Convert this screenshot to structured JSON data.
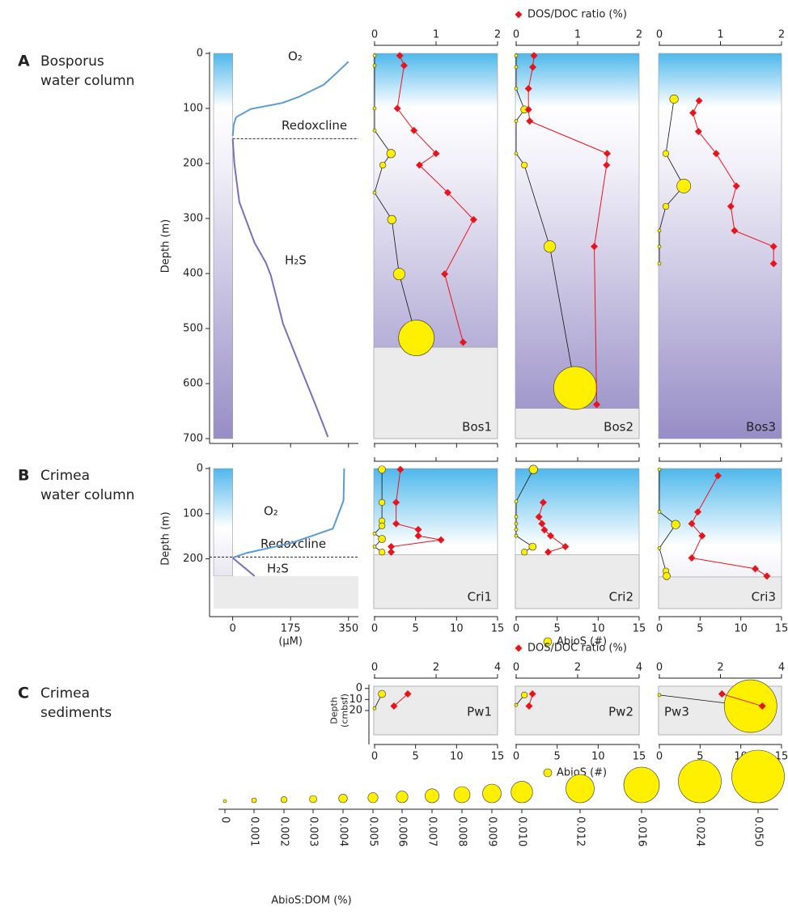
{
  "chart_data": [
    {
      "type": "depth_profiles",
      "label": "A",
      "title": [
        "Bosporus",
        "water column"
      ],
      "ylabel": "Depth (m)",
      "ylim": [
        0,
        700
      ],
      "yticks": [
        0,
        100,
        200,
        300,
        400,
        500,
        600,
        700
      ],
      "profile": {
        "xlim": [
          -70,
          380
        ],
        "xticks": [
          0,
          175,
          350
        ],
        "labels": false,
        "series": [
          {
            "name": "O₂",
            "color": "#5b9bd5",
            "depth": [
              15,
              35,
              57,
              79,
              90,
              101,
              116,
              130,
              150
            ],
            "values": [
              350,
              315,
              275,
              200,
              150,
              55,
              10,
              3,
              0
            ]
          },
          {
            "name": "H₂S",
            "color": "#7a6fb8",
            "depth": [
              155,
              200,
              270,
              344,
              380,
              403,
              450,
              491,
              565,
              638,
              697
            ],
            "values": [
              0,
              5,
              20,
              66,
              100,
              115,
              135,
              152,
              201,
              250,
              288
            ]
          }
        ],
        "redoxcline": {
          "label": "Redoxcline",
          "depth": 155
        }
      },
      "dosdoc": {
        "color": "#e8141b",
        "xlim": [
          0,
          2
        ],
        "xticks": [
          0,
          1,
          2
        ],
        "labels": true,
        "legend": "DOS/DOC ratio (%)"
      },
      "abios": {
        "color": "#fff000",
        "xlim": [
          0,
          15
        ],
        "xticks": [
          0,
          5,
          10,
          15
        ],
        "labels": false
      },
      "stations": [
        {
          "name": "Bos1",
          "seafloor": 534,
          "abios": {
            "depth": [
              4,
              22,
              100,
              140,
              182,
              203,
              253,
              302,
              401,
              517
            ],
            "values": [
              0,
              0,
              0,
              0,
              2.0,
              1.0,
              0,
              2.1,
              3.0,
              5.1
            ],
            "sizes": [
              0,
              0,
              0,
              0,
              0.004,
              0.002,
              0,
              0.004,
              0.006,
              0.016
            ]
          },
          "dosdoc": {
            "depth": [
              4,
              22,
              100,
              140,
              182,
              203,
              253,
              302,
              401,
              525
            ],
            "values": [
              0.41,
              0.48,
              0.37,
              0.64,
              1.0,
              0.73,
              1.19,
              1.61,
              1.14,
              1.44
            ]
          }
        },
        {
          "name": "Bos2",
          "seafloor": 645,
          "abios": {
            "depth": [
              4,
              25,
              64,
              102,
              123,
              182,
              203,
              351,
              608
            ],
            "values": [
              0,
              0,
              0,
              1.0,
              0,
              0,
              1.0,
              4.1,
              7.2
            ],
            "sizes": [
              0,
              0,
              0,
              0.003,
              0,
              0,
              0.002,
              0.006,
              0.024
            ]
          },
          "dosdoc": {
            "depth": [
              4,
              25,
              64,
              102,
              123,
              182,
              203,
              351,
              638
            ],
            "values": [
              0.29,
              0.27,
              0.2,
              0.2,
              0.22,
              1.48,
              1.47,
              1.27,
              1.31
            ]
          }
        },
        {
          "name": "Bos3",
          "abios": {
            "depth": [
              83,
              182,
              241,
              278,
              322,
              351,
              382
            ],
            "values": [
              1.8,
              0.8,
              3.0,
              0.8,
              0,
              0,
              0
            ],
            "sizes": [
              0.004,
              0.002,
              0.007,
              0.002,
              0,
              0,
              0
            ]
          },
          "dosdoc": {
            "depth": [
              86,
              108,
              142,
              182,
              241,
              278,
              322,
              351,
              382
            ],
            "values": [
              0.65,
              0.55,
              0.64,
              0.93,
              1.26,
              1.17,
              1.23,
              1.87,
              1.87
            ]
          }
        }
      ]
    },
    {
      "type": "depth_profiles",
      "label": "B",
      "title": [
        "Crimea",
        "water column"
      ],
      "ylabel": "Depth (m)",
      "ylim": [
        0,
        310
      ],
      "yticks": [
        0,
        100,
        200
      ],
      "profile": {
        "xlim": [
          -70,
          380
        ],
        "xticks": [
          0,
          175,
          350
        ],
        "labels": true,
        "xlabel": "(µM)",
        "seafloor": 238,
        "series": [
          {
            "name": "O₂",
            "color": "#5b9bd5",
            "depth": [
              0,
              71,
              133,
              165,
              187,
              196,
              198
            ],
            "values": [
              337,
              335,
              303,
              177,
              42,
              5,
              0
            ]
          },
          {
            "name": "H₂S",
            "color": "#7a6fb8",
            "depth": [
              198,
              216,
              238
            ],
            "values": [
              0,
              30,
              66
            ]
          }
        ],
        "redoxcline": {
          "label": "Redoxcline",
          "depth": 196
        }
      },
      "dosdoc": {
        "color": "#e8141b",
        "xlim": [
          0,
          2
        ],
        "xticks": [
          0,
          1,
          2
        ],
        "labels": false
      },
      "abios": {
        "color": "#fff000",
        "xlim": [
          0,
          15
        ],
        "xticks": [
          0,
          5,
          10,
          15
        ],
        "labels": true,
        "legend": "AbioS (#)"
      },
      "stations": [
        {
          "name": "Cri1",
          "seafloor": 191,
          "abios": {
            "depth": [
              2,
              75,
              116,
              127,
              144,
              156,
              173,
              185
            ],
            "values": [
              0.9,
              0.9,
              0.9,
              0.9,
              0,
              0.9,
              0,
              0.9
            ],
            "sizes": [
              0.003,
              0.002,
              0.002,
              0.002,
              0,
              0.003,
              0,
              0.002
            ]
          },
          "dosdoc": {
            "depth": [
              2,
              75,
              122,
              135,
              149,
              158,
              173,
              185
            ],
            "values": [
              0.42,
              0.35,
              0.35,
              0.71,
              0.71,
              1.08,
              0.27,
              0.27
            ]
          }
        },
        {
          "name": "Cri2",
          "seafloor": 191,
          "abios": {
            "depth": [
              2,
              73,
              107,
              122,
              135,
              149,
              173,
              185
            ],
            "values": [
              2.1,
              0,
              0,
              0,
              0,
              0,
              2.0,
              1.0
            ],
            "sizes": [
              0.004,
              0,
              0,
              0,
              0,
              0,
              0.003,
              0.002
            ]
          },
          "dosdoc": {
            "depth": [
              75,
              107,
              122,
              136,
              149,
              173,
              185
            ],
            "values": [
              0.44,
              0.37,
              0.42,
              0.46,
              0.56,
              0.8,
              0.52
            ]
          }
        },
        {
          "name": "Cri3",
          "seafloor": 240,
          "abios": {
            "depth": [
              2,
              96,
              124,
              176,
              227,
              238
            ],
            "values": [
              0,
              0,
              2.0,
              0,
              0.8,
              0.9
            ],
            "sizes": [
              0,
              0,
              0.004,
              0,
              0.002,
              0.003
            ]
          },
          "dosdoc": {
            "depth": [
              16,
              96,
              122,
              149,
              198,
              222,
              238
            ],
            "values": [
              0.96,
              0.63,
              0.53,
              0.7,
              0.53,
              1.57,
              1.76
            ]
          }
        }
      ]
    },
    {
      "type": "depth_profiles",
      "label": "C",
      "title": [
        "Crimea",
        "sediments"
      ],
      "ylabel": [
        "Depth",
        "(cmbsf)"
      ],
      "ylim": [
        -2,
        42
      ],
      "yticks": [
        0,
        10,
        20
      ],
      "dosdoc": {
        "color": "#e8141b",
        "xlim": [
          0,
          4
        ],
        "xticks": [
          0,
          2,
          4
        ],
        "labels": true,
        "legend": "DOS/DOC ratio (%)"
      },
      "abios": {
        "color": "#fff000",
        "xlim": [
          0,
          15
        ],
        "xticks": [
          0,
          5,
          10,
          15
        ],
        "labels": true,
        "legend": "AbioS (#)"
      },
      "stations": [
        {
          "name": "Pw1",
          "seafloor": -2,
          "abios": {
            "depth": [
              5,
              18
            ],
            "values": [
              0.9,
              0
            ],
            "sizes": [
              0.003,
              0
            ]
          },
          "dosdoc": {
            "depth": [
              5,
              16
            ],
            "values": [
              1.08,
              0.63
            ]
          }
        },
        {
          "name": "Pw2",
          "seafloor": -2,
          "abios": {
            "depth": [
              6,
              15
            ],
            "values": [
              1.0,
              0
            ],
            "sizes": [
              0.002,
              0
            ]
          },
          "dosdoc": {
            "depth": [
              5,
              16
            ],
            "values": [
              0.53,
              0.42
            ]
          }
        },
        {
          "name": "Pw3",
          "seafloor": -2,
          "abios": {
            "depth": [
              6,
              16
            ],
            "values": [
              0,
              11.2
            ],
            "sizes": [
              0,
              0.05
            ]
          },
          "dosdoc": {
            "depth": [
              5,
              16
            ],
            "values": [
              2.05,
              3.37
            ]
          }
        }
      ]
    },
    {
      "type": "size_legend",
      "title": "AbioS:DOM (%)",
      "color": "#fff000",
      "ticks": [
        0,
        0.001,
        0.002,
        0.003,
        0.004,
        0.005,
        0.006,
        0.007,
        0.008,
        0.009,
        {
          "value": 0.01,
          "label": "0.010"
        },
        0.012,
        0.016,
        0.024,
        {
          "value": 0.05,
          "label": "0.050"
        }
      ]
    }
  ]
}
